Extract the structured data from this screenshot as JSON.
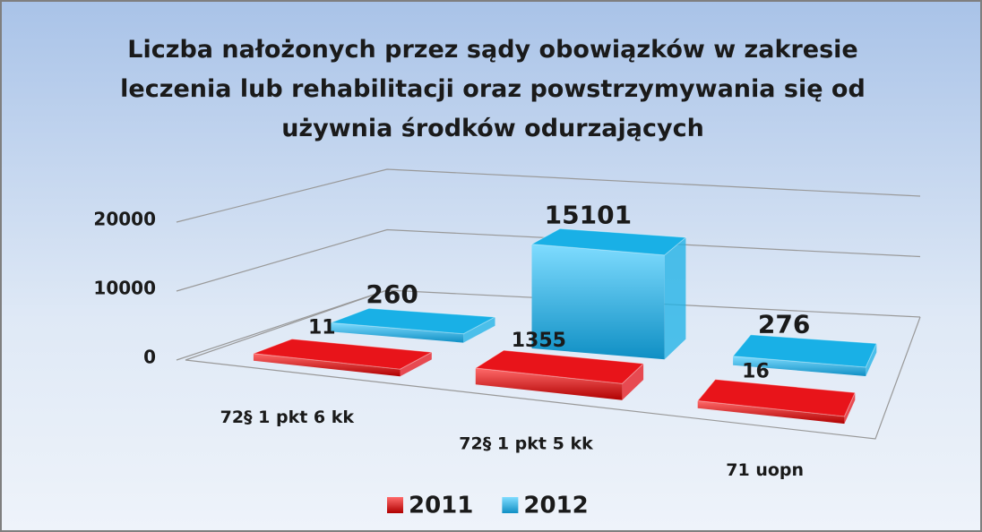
{
  "chart_data": {
    "type": "bar3d",
    "title": "Liczba nałożonych przez sądy obowiązków w zakresie leczenia lub rehabilitacji oraz powstrzymywania się od używnia środków odurzających",
    "categories": [
      "72§ 1 pkt 6 kk",
      "72§ 1 pkt 5 kk",
      "71 uopn"
    ],
    "series": [
      {
        "name": "2011",
        "color": "#e8141a",
        "values": [
          11,
          1355,
          16
        ]
      },
      {
        "name": "2012",
        "color": "#19b0e6",
        "values": [
          260,
          15101,
          276
        ]
      }
    ],
    "ylim": [
      0,
      20000
    ],
    "yticks": [
      0,
      10000,
      20000
    ],
    "grid": true,
    "legend": "bottom"
  }
}
